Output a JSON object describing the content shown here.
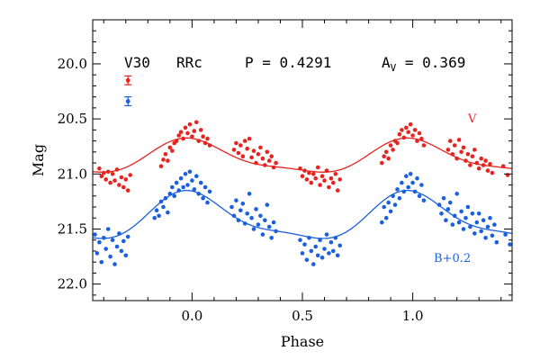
{
  "chart_data": {
    "type": "scatter",
    "title_items": {
      "star": "V30",
      "type": "RRc",
      "period": "P = 0.4291",
      "amp_prefix": "A",
      "amp_sub": "V",
      "amp_value": " = 0.369"
    },
    "xlabel": "Phase",
    "ylabel": "Mag",
    "xlim": [
      -0.45,
      1.45
    ],
    "ylim": [
      22.15,
      19.6
    ],
    "y_inverted": true,
    "x_ticks": [
      0.0,
      0.5,
      1.0
    ],
    "x_tick_labels": [
      "0.0",
      "0.5",
      "1.0"
    ],
    "y_ticks": [
      20.0,
      20.5,
      21.0,
      21.5,
      22.0
    ],
    "y_tick_labels": [
      "20.0",
      "20.5",
      "21.0",
      "21.5",
      "22.0"
    ],
    "colors": {
      "V": "#e8231f",
      "B": "#1a5fe0"
    },
    "error_bars": [
      {
        "series": "V",
        "x": -0.29,
        "y": 20.15,
        "err": 0.04
      },
      {
        "series": "B",
        "x": -0.29,
        "y": 20.34,
        "err": 0.04
      }
    ],
    "series": [
      {
        "name": "V",
        "label": "V",
        "fit": {
          "mean": 20.855,
          "amp": 0.185,
          "phase_peak": 0.0,
          "phase_min": 0.55
        },
        "points": [
          [
            -0.42,
            20.95
          ],
          [
            -0.41,
            21.02
          ],
          [
            -0.4,
            20.99
          ],
          [
            -0.39,
            21.05
          ],
          [
            -0.38,
            20.98
          ],
          [
            -0.37,
            21.08
          ],
          [
            -0.36,
            21.0
          ],
          [
            -0.35,
            21.06
          ],
          [
            -0.34,
            20.96
          ],
          [
            -0.33,
            21.1
          ],
          [
            -0.32,
            21.03
          ],
          [
            -0.31,
            21.12
          ],
          [
            -0.3,
            21.05
          ],
          [
            -0.29,
            21.15
          ],
          [
            -0.28,
            21.01
          ],
          [
            -0.14,
            20.93
          ],
          [
            -0.13,
            20.87
          ],
          [
            -0.12,
            20.82
          ],
          [
            -0.11,
            20.88
          ],
          [
            -0.1,
            20.76
          ],
          [
            -0.09,
            20.79
          ],
          [
            -0.08,
            20.72
          ],
          [
            -0.07,
            20.7
          ],
          [
            -0.06,
            20.65
          ],
          [
            -0.05,
            20.62
          ],
          [
            -0.04,
            20.68
          ],
          [
            -0.03,
            20.58
          ],
          [
            -0.02,
            20.63
          ],
          [
            -0.01,
            20.55
          ],
          [
            0.0,
            20.66
          ],
          [
            0.01,
            20.61
          ],
          [
            0.02,
            20.53
          ],
          [
            0.03,
            20.7
          ],
          [
            0.04,
            20.6
          ],
          [
            0.05,
            20.66
          ],
          [
            0.06,
            20.72
          ],
          [
            0.07,
            20.68
          ],
          [
            0.08,
            20.74
          ],
          [
            0.19,
            20.78
          ],
          [
            0.2,
            20.72
          ],
          [
            0.21,
            20.81
          ],
          [
            0.22,
            20.74
          ],
          [
            0.23,
            20.84
          ],
          [
            0.24,
            20.7
          ],
          [
            0.25,
            20.77
          ],
          [
            0.26,
            20.68
          ],
          [
            0.27,
            20.85
          ],
          [
            0.28,
            20.79
          ],
          [
            0.29,
            20.9
          ],
          [
            0.3,
            20.82
          ],
          [
            0.31,
            20.76
          ],
          [
            0.32,
            20.86
          ],
          [
            0.33,
            20.92
          ],
          [
            0.34,
            20.8
          ],
          [
            0.35,
            20.88
          ],
          [
            0.36,
            20.84
          ],
          [
            0.37,
            20.94
          ],
          [
            0.38,
            20.9
          ],
          [
            0.49,
            20.95
          ],
          [
            0.5,
            21.02
          ],
          [
            0.51,
            20.97
          ],
          [
            0.52,
            21.05
          ],
          [
            0.53,
            20.99
          ],
          [
            0.54,
            21.08
          ],
          [
            0.55,
            21.0
          ],
          [
            0.56,
            21.04
          ],
          [
            0.57,
            20.94
          ],
          [
            0.58,
            21.1
          ],
          [
            0.59,
            21.02
          ],
          [
            0.6,
            21.06
          ],
          [
            0.61,
            20.97
          ],
          [
            0.62,
            21.12
          ],
          [
            0.63,
            21.04
          ],
          [
            0.64,
            21.08
          ],
          [
            0.65,
            21.0
          ],
          [
            0.66,
            21.15
          ],
          [
            0.67,
            21.05
          ],
          [
            0.86,
            20.9
          ],
          [
            0.87,
            20.84
          ],
          [
            0.88,
            20.8
          ],
          [
            0.89,
            20.86
          ],
          [
            0.9,
            20.74
          ],
          [
            0.91,
            20.78
          ],
          [
            0.92,
            20.7
          ],
          [
            0.93,
            20.72
          ],
          [
            0.94,
            20.64
          ],
          [
            0.95,
            20.6
          ],
          [
            0.96,
            20.67
          ],
          [
            0.97,
            20.58
          ],
          [
            0.98,
            20.62
          ],
          [
            0.99,
            20.55
          ],
          [
            1.0,
            20.65
          ],
          [
            1.01,
            20.6
          ],
          [
            1.02,
            20.7
          ],
          [
            1.03,
            20.63
          ],
          [
            1.04,
            20.68
          ],
          [
            1.05,
            20.74
          ],
          [
            1.16,
            20.78
          ],
          [
            1.17,
            20.7
          ],
          [
            1.18,
            20.82
          ],
          [
            1.19,
            20.74
          ],
          [
            1.2,
            20.86
          ],
          [
            1.21,
            20.69
          ],
          [
            1.22,
            20.8
          ],
          [
            1.23,
            20.76
          ],
          [
            1.24,
            20.88
          ],
          [
            1.25,
            20.82
          ],
          [
            1.26,
            20.92
          ],
          [
            1.27,
            20.84
          ],
          [
            1.28,
            20.78
          ],
          [
            1.29,
            20.9
          ],
          [
            1.3,
            20.95
          ],
          [
            1.31,
            20.86
          ],
          [
            1.32,
            20.92
          ],
          [
            1.33,
            20.88
          ],
          [
            1.34,
            20.97
          ],
          [
            1.35,
            20.91
          ],
          [
            1.36,
            20.99
          ],
          [
            1.41,
            20.93
          ],
          [
            1.43,
            21.01
          ]
        ]
      },
      {
        "name": "B",
        "label": "B+0.2",
        "fit": {
          "mean": 21.405,
          "amp": 0.26,
          "phase_peak": 0.0,
          "phase_min": 0.55
        },
        "points": [
          [
            -0.44,
            21.55
          ],
          [
            -0.43,
            21.72
          ],
          [
            -0.42,
            21.62
          ],
          [
            -0.41,
            21.8
          ],
          [
            -0.4,
            21.58
          ],
          [
            -0.39,
            21.68
          ],
          [
            -0.38,
            21.5
          ],
          [
            -0.37,
            21.75
          ],
          [
            -0.36,
            21.6
          ],
          [
            -0.35,
            21.82
          ],
          [
            -0.34,
            21.66
          ],
          [
            -0.33,
            21.54
          ],
          [
            -0.32,
            21.7
          ],
          [
            -0.31,
            21.61
          ],
          [
            -0.3,
            21.74
          ],
          [
            -0.29,
            21.57
          ],
          [
            -0.17,
            21.4
          ],
          [
            -0.16,
            21.33
          ],
          [
            -0.15,
            21.38
          ],
          [
            -0.14,
            21.25
          ],
          [
            -0.13,
            21.3
          ],
          [
            -0.12,
            21.22
          ],
          [
            -0.11,
            21.35
          ],
          [
            -0.1,
            21.18
          ],
          [
            -0.09,
            21.12
          ],
          [
            -0.08,
            21.2
          ],
          [
            -0.07,
            21.08
          ],
          [
            -0.06,
            21.15
          ],
          [
            -0.05,
            21.04
          ],
          [
            -0.04,
            21.12
          ],
          [
            -0.03,
            21.0
          ],
          [
            -0.02,
            21.1
          ],
          [
            -0.01,
            20.98
          ],
          [
            0.0,
            21.06
          ],
          [
            0.01,
            21.14
          ],
          [
            0.02,
            21.02
          ],
          [
            0.03,
            21.18
          ],
          [
            0.04,
            21.08
          ],
          [
            0.05,
            21.22
          ],
          [
            0.06,
            21.12
          ],
          [
            0.07,
            21.26
          ],
          [
            0.08,
            21.16
          ],
          [
            0.18,
            21.3
          ],
          [
            0.19,
            21.38
          ],
          [
            0.2,
            21.24
          ],
          [
            0.21,
            21.42
          ],
          [
            0.22,
            21.33
          ],
          [
            0.23,
            21.27
          ],
          [
            0.24,
            21.45
          ],
          [
            0.25,
            21.36
          ],
          [
            0.26,
            21.18
          ],
          [
            0.27,
            21.4
          ],
          [
            0.28,
            21.5
          ],
          [
            0.29,
            21.32
          ],
          [
            0.3,
            21.46
          ],
          [
            0.31,
            21.38
          ],
          [
            0.32,
            21.55
          ],
          [
            0.33,
            21.42
          ],
          [
            0.34,
            21.28
          ],
          [
            0.35,
            21.48
          ],
          [
            0.36,
            21.58
          ],
          [
            0.37,
            21.44
          ],
          [
            0.38,
            21.52
          ],
          [
            0.49,
            21.6
          ],
          [
            0.5,
            21.72
          ],
          [
            0.51,
            21.64
          ],
          [
            0.52,
            21.78
          ],
          [
            0.53,
            21.58
          ],
          [
            0.54,
            21.7
          ],
          [
            0.55,
            21.82
          ],
          [
            0.56,
            21.66
          ],
          [
            0.57,
            21.74
          ],
          [
            0.58,
            21.6
          ],
          [
            0.59,
            21.76
          ],
          [
            0.6,
            21.68
          ],
          [
            0.61,
            21.55
          ],
          [
            0.62,
            21.72
          ],
          [
            0.63,
            21.62
          ],
          [
            0.64,
            21.7
          ],
          [
            0.65,
            21.58
          ],
          [
            0.66,
            21.74
          ],
          [
            0.67,
            21.65
          ],
          [
            0.86,
            21.44
          ],
          [
            0.87,
            21.3
          ],
          [
            0.88,
            21.4
          ],
          [
            0.89,
            21.26
          ],
          [
            0.9,
            21.34
          ],
          [
            0.91,
            21.2
          ],
          [
            0.92,
            21.28
          ],
          [
            0.93,
            21.14
          ],
          [
            0.94,
            21.22
          ],
          [
            0.95,
            21.08
          ],
          [
            0.96,
            21.16
          ],
          [
            0.97,
            21.02
          ],
          [
            0.98,
            21.12
          ],
          [
            0.99,
            21.0
          ],
          [
            1.0,
            21.08
          ],
          [
            1.01,
            21.16
          ],
          [
            1.02,
            21.04
          ],
          [
            1.03,
            21.2
          ],
          [
            1.04,
            21.1
          ],
          [
            1.05,
            21.24
          ],
          [
            1.12,
            21.28
          ],
          [
            1.13,
            21.36
          ],
          [
            1.14,
            21.22
          ],
          [
            1.15,
            21.42
          ],
          [
            1.16,
            21.32
          ],
          [
            1.17,
            21.26
          ],
          [
            1.18,
            21.46
          ],
          [
            1.19,
            21.38
          ],
          [
            1.2,
            21.18
          ],
          [
            1.21,
            21.44
          ],
          [
            1.22,
            21.34
          ],
          [
            1.23,
            21.5
          ],
          [
            1.24,
            21.4
          ],
          [
            1.25,
            21.3
          ],
          [
            1.26,
            21.48
          ],
          [
            1.27,
            21.36
          ],
          [
            1.28,
            21.54
          ],
          [
            1.29,
            21.44
          ],
          [
            1.3,
            21.36
          ],
          [
            1.31,
            21.52
          ],
          [
            1.32,
            21.42
          ],
          [
            1.33,
            21.58
          ],
          [
            1.34,
            21.48
          ],
          [
            1.35,
            21.4
          ],
          [
            1.36,
            21.56
          ],
          [
            1.37,
            21.46
          ],
          [
            1.38,
            21.62
          ],
          [
            1.42,
            21.55
          ],
          [
            1.44,
            21.64
          ]
        ]
      }
    ]
  }
}
